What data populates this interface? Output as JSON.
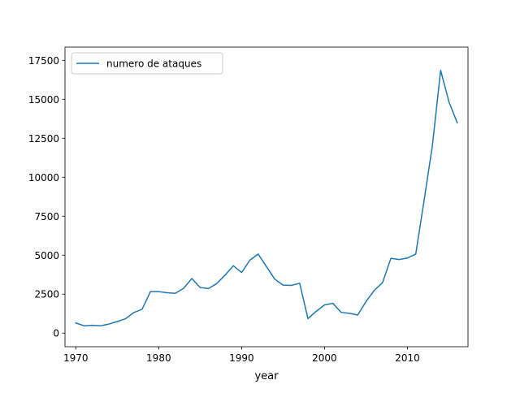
{
  "chart_data": {
    "type": "line",
    "xlabel": "year",
    "ylabel": "",
    "xlim": [
      1968.7,
      2017.3
    ],
    "ylim": [
      -874,
      18350
    ],
    "x_ticks": [
      1970,
      1980,
      1990,
      2000,
      2010
    ],
    "x_tick_labels": [
      "1970",
      "1980",
      "1990",
      "2000",
      "2010"
    ],
    "y_ticks": [
      0,
      2500,
      5000,
      7500,
      10000,
      12500,
      15000,
      17500
    ],
    "y_tick_labels": [
      "0",
      "2500",
      "5000",
      "7500",
      "10000",
      "12500",
      "15000",
      "17500"
    ],
    "grid": false,
    "legend_position": "upper-left",
    "series": [
      {
        "name": "numero de ataques",
        "color": "#1f77b4",
        "x": [
          1970,
          1971,
          1972,
          1973,
          1974,
          1975,
          1976,
          1977,
          1978,
          1979,
          1980,
          1981,
          1982,
          1983,
          1984,
          1985,
          1986,
          1987,
          1988,
          1989,
          1990,
          1991,
          1992,
          1994,
          1995,
          1996,
          1997,
          1998,
          1999,
          2000,
          2001,
          2002,
          2003,
          2004,
          2005,
          2006,
          2007,
          2008,
          2009,
          2010,
          2011,
          2012,
          2013,
          2014,
          2015,
          2016
        ],
        "y": [
          650,
          470,
          500,
          470,
          580,
          740,
          920,
          1320,
          1530,
          2660,
          2660,
          2590,
          2550,
          2870,
          3500,
          2920,
          2860,
          3180,
          3720,
          4320,
          3890,
          4680,
          5070,
          3460,
          3080,
          3060,
          3200,
          930,
          1400,
          1810,
          1910,
          1330,
          1270,
          1160,
          2020,
          2740,
          3240,
          4800,
          4720,
          4820,
          5070,
          8500,
          12000,
          16860,
          14840,
          13500
        ]
      }
    ]
  }
}
